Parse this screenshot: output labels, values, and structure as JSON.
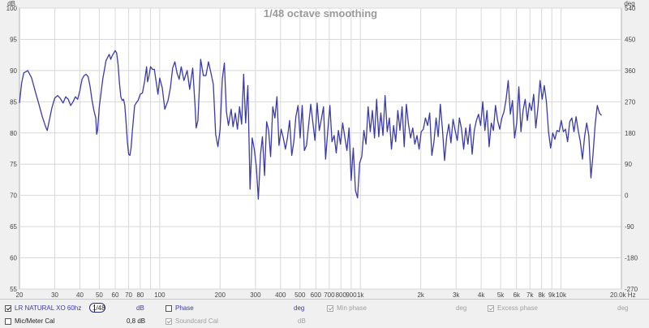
{
  "chart_data": {
    "type": "line",
    "title": "1/48 octave smoothing",
    "xscale": "log",
    "xlim": [
      20,
      20000
    ],
    "ylim": [
      55,
      100
    ],
    "y2lim": [
      -270,
      540
    ],
    "y_unit": "dB",
    "y2_unit": "deg",
    "x_tick_labels": [
      "20",
      "30",
      "40",
      "50",
      "60",
      "70",
      "80",
      "100",
      "200",
      "300",
      "400",
      "500",
      "600",
      "700",
      "800",
      "900",
      "1k",
      "2k",
      "3k",
      "4k",
      "5k",
      "6k",
      "7k",
      "8k",
      "9k",
      "10k",
      "20.0k Hz"
    ],
    "x_tick_values": [
      20,
      30,
      40,
      50,
      60,
      70,
      80,
      100,
      200,
      300,
      400,
      500,
      600,
      700,
      800,
      900,
      1000,
      2000,
      3000,
      4000,
      5000,
      6000,
      7000,
      8000,
      9000,
      10000,
      20000
    ],
    "y_tick_labels": [
      "55",
      "60",
      "65",
      "70",
      "75",
      "80",
      "85",
      "90",
      "95",
      "100"
    ],
    "y2_tick_labels": [
      "-270",
      "-180",
      "-90",
      "0",
      "90",
      "180",
      "270",
      "360",
      "450",
      "540"
    ],
    "grid": true,
    "series": [
      {
        "color": "#3a3aaa",
        "points": [
          [
            20,
            84.8
          ],
          [
            20.5,
            88
          ],
          [
            21,
            89.6
          ],
          [
            22,
            90
          ],
          [
            23,
            88.8
          ],
          [
            24,
            86.6
          ],
          [
            25,
            84.6
          ],
          [
            26,
            82.6
          ],
          [
            27,
            81
          ],
          [
            27.5,
            80.4
          ],
          [
            28,
            81.6
          ],
          [
            29,
            84
          ],
          [
            30,
            85.6
          ],
          [
            31,
            86
          ],
          [
            32,
            85.5
          ],
          [
            33,
            84.8
          ],
          [
            34,
            85.8
          ],
          [
            35,
            85.4
          ],
          [
            36,
            84.4
          ],
          [
            37,
            85
          ],
          [
            38,
            85.8
          ],
          [
            39,
            85.4
          ],
          [
            40,
            86.8
          ],
          [
            41,
            88.6
          ],
          [
            42,
            89.2
          ],
          [
            43,
            89.4
          ],
          [
            44,
            89
          ],
          [
            45,
            87.4
          ],
          [
            46,
            85.2
          ],
          [
            47,
            83.6
          ],
          [
            48,
            82.4
          ],
          [
            48.5,
            79.8
          ],
          [
            49,
            80.4
          ],
          [
            50,
            84.2
          ],
          [
            52,
            88.6
          ],
          [
            54,
            91.6
          ],
          [
            56,
            92.6
          ],
          [
            57,
            91.8
          ],
          [
            58,
            92.4
          ],
          [
            60,
            93.2
          ],
          [
            61,
            92.8
          ],
          [
            62,
            91
          ],
          [
            63,
            88
          ],
          [
            64,
            85.8
          ],
          [
            65,
            85.2
          ],
          [
            66,
            85.4
          ],
          [
            67,
            84.4
          ],
          [
            68,
            81.6
          ],
          [
            69,
            78.6
          ],
          [
            70,
            76.6
          ],
          [
            71,
            76.4
          ],
          [
            72,
            77.6
          ],
          [
            73,
            80.2
          ],
          [
            75,
            84.4
          ],
          [
            77,
            85
          ],
          [
            78,
            85.2
          ],
          [
            80,
            86.2
          ],
          [
            82,
            86.4
          ],
          [
            84,
            88.2
          ],
          [
            86,
            90.6
          ],
          [
            87,
            88.2
          ],
          [
            88,
            88.8
          ],
          [
            90,
            90.6
          ],
          [
            92,
            90.2
          ],
          [
            94,
            90.2
          ],
          [
            96,
            88.2
          ],
          [
            98,
            86.2
          ],
          [
            100,
            88.8
          ],
          [
            103,
            87.2
          ],
          [
            106,
            83.8
          ],
          [
            110,
            85.2
          ],
          [
            113,
            87.2
          ],
          [
            116,
            90.4
          ],
          [
            119,
            91.4
          ],
          [
            122,
            89.6
          ],
          [
            125,
            88.6
          ],
          [
            128,
            90.6
          ],
          [
            132,
            88.4
          ],
          [
            137,
            90
          ],
          [
            141,
            87
          ],
          [
            146,
            90.4
          ],
          [
            150,
            84.4
          ],
          [
            152,
            80.8
          ],
          [
            155,
            82
          ],
          [
            160,
            91.8
          ],
          [
            165,
            89.2
          ],
          [
            170,
            89.2
          ],
          [
            175,
            91.4
          ],
          [
            180,
            89.6
          ],
          [
            185,
            87.8
          ],
          [
            190,
            79.8
          ],
          [
            195,
            77.8
          ],
          [
            200,
            80.6
          ],
          [
            205,
            88.6
          ],
          [
            210,
            91.2
          ],
          [
            215,
            83.4
          ],
          [
            220,
            81.2
          ],
          [
            227,
            83.8
          ],
          [
            232,
            81
          ],
          [
            238,
            83.2
          ],
          [
            244,
            80.6
          ],
          [
            250,
            84.2
          ],
          [
            256,
            81.4
          ],
          [
            262,
            89.4
          ],
          [
            268,
            81.6
          ],
          [
            275,
            87.6
          ],
          [
            282,
            71
          ],
          [
            289,
            79.2
          ],
          [
            296,
            77.4
          ],
          [
            303,
            74.6
          ],
          [
            310,
            69.4
          ],
          [
            318,
            76.6
          ],
          [
            325,
            79.4
          ],
          [
            333,
            73.2
          ],
          [
            341,
            81.8
          ],
          [
            349,
            80.4
          ],
          [
            357,
            76.2
          ],
          [
            366,
            84.2
          ],
          [
            375,
            82.4
          ],
          [
            384,
            85.8
          ],
          [
            393,
            78
          ],
          [
            403,
            80.6
          ],
          [
            413,
            79.2
          ],
          [
            423,
            77.4
          ],
          [
            433,
            79.2
          ],
          [
            444,
            82
          ],
          [
            455,
            76.4
          ],
          [
            466,
            78.6
          ],
          [
            477,
            82.6
          ],
          [
            489,
            84.4
          ],
          [
            501,
            79.2
          ],
          [
            513,
            84.4
          ],
          [
            526,
            77.2
          ],
          [
            539,
            78
          ],
          [
            552,
            81.2
          ],
          [
            566,
            84.6
          ],
          [
            580,
            81.6
          ],
          [
            594,
            78.8
          ],
          [
            609,
            84.8
          ],
          [
            624,
            80.4
          ],
          [
            639,
            82.2
          ],
          [
            655,
            84.2
          ],
          [
            671,
            75.8
          ],
          [
            688,
            80.4
          ],
          [
            705,
            84.4
          ],
          [
            722,
            78.6
          ],
          [
            740,
            79.6
          ],
          [
            758,
            76.8
          ],
          [
            777,
            80.4
          ],
          [
            796,
            78.2
          ],
          [
            816,
            81.6
          ],
          [
            836,
            79.4
          ],
          [
            857,
            77.2
          ],
          [
            878,
            80.8
          ],
          [
            900,
            72.4
          ],
          [
            922,
            77.6
          ],
          [
            945,
            70.8
          ],
          [
            968,
            69.6
          ],
          [
            992,
            75.2
          ],
          [
            1016,
            76.2
          ],
          [
            1041,
            80.4
          ],
          [
            1067,
            78.2
          ],
          [
            1093,
            84.2
          ],
          [
            1120,
            80.2
          ],
          [
            1148,
            83.6
          ],
          [
            1176,
            79.2
          ],
          [
            1205,
            85.4
          ],
          [
            1235,
            79.4
          ],
          [
            1265,
            83.2
          ],
          [
            1296,
            79.6
          ],
          [
            1328,
            86
          ],
          [
            1361,
            80.2
          ],
          [
            1395,
            82.4
          ],
          [
            1429,
            77.4
          ],
          [
            1464,
            81.2
          ],
          [
            1500,
            78.6
          ],
          [
            1537,
            83.6
          ],
          [
            1575,
            80.4
          ],
          [
            1614,
            84.2
          ],
          [
            1654,
            77.8
          ],
          [
            1695,
            84.6
          ],
          [
            1737,
            81.4
          ],
          [
            1780,
            79.2
          ],
          [
            1824,
            80.8
          ],
          [
            1869,
            78.2
          ],
          [
            1915,
            79.6
          ],
          [
            1962,
            77.4
          ],
          [
            2010,
            80.2
          ],
          [
            2060,
            80.6
          ],
          [
            2111,
            82.4
          ],
          [
            2163,
            81.2
          ],
          [
            2216,
            83.2
          ],
          [
            2271,
            76.4
          ],
          [
            2327,
            78.6
          ],
          [
            2384,
            82.4
          ],
          [
            2443,
            79.4
          ],
          [
            2503,
            84.6
          ],
          [
            2565,
            80.6
          ],
          [
            2628,
            75.6
          ],
          [
            2693,
            79.4
          ],
          [
            2759,
            81.4
          ],
          [
            2827,
            78.4
          ],
          [
            2897,
            82.2
          ],
          [
            2968,
            80.4
          ],
          [
            3041,
            78.8
          ],
          [
            3116,
            82.4
          ],
          [
            3193,
            80.6
          ],
          [
            3272,
            77.4
          ],
          [
            3352,
            80.8
          ],
          [
            3435,
            78.2
          ],
          [
            3520,
            81.4
          ],
          [
            3607,
            76.6
          ],
          [
            3696,
            80.4
          ],
          [
            3787,
            82
          ],
          [
            3880,
            83
          ],
          [
            3976,
            81.2
          ],
          [
            4074,
            85
          ],
          [
            4174,
            80.4
          ],
          [
            4277,
            83.6
          ],
          [
            4383,
            77.8
          ],
          [
            4491,
            81.6
          ],
          [
            4602,
            80.4
          ],
          [
            4715,
            84.4
          ],
          [
            4831,
            82
          ],
          [
            4950,
            80.6
          ],
          [
            5072,
            82.4
          ],
          [
            5197,
            83.4
          ],
          [
            5325,
            85.4
          ],
          [
            5456,
            88.4
          ],
          [
            5591,
            83
          ],
          [
            5729,
            85.2
          ],
          [
            5870,
            79.2
          ],
          [
            6015,
            81.6
          ],
          [
            6163,
            87.4
          ],
          [
            6315,
            80.2
          ],
          [
            6471,
            83.6
          ],
          [
            6630,
            85.4
          ],
          [
            6793,
            82
          ],
          [
            6961,
            84.8
          ],
          [
            7132,
            83.6
          ],
          [
            7308,
            86.2
          ],
          [
            7488,
            80.8
          ],
          [
            7672,
            84
          ],
          [
            7861,
            88.4
          ],
          [
            8055,
            85.4
          ],
          [
            8253,
            87.6
          ],
          [
            8456,
            85
          ],
          [
            8664,
            80.2
          ],
          [
            8878,
            77.6
          ],
          [
            9096,
            80
          ],
          [
            9320,
            79
          ],
          [
            9550,
            80.4
          ],
          [
            9785,
            80.2
          ],
          [
            10026,
            82
          ],
          [
            10273,
            80.2
          ],
          [
            10526,
            80.6
          ],
          [
            10785,
            78.6
          ],
          [
            11051,
            81.8
          ],
          [
            11323,
            82.4
          ],
          [
            11602,
            80.2
          ],
          [
            11888,
            82.6
          ],
          [
            12181,
            80.4
          ],
          [
            12481,
            78.6
          ],
          [
            12788,
            75.8
          ],
          [
            13103,
            79.4
          ],
          [
            13426,
            81.6
          ],
          [
            13757,
            79.6
          ],
          [
            14096,
            72.8
          ],
          [
            14443,
            76.6
          ],
          [
            14799,
            81.4
          ],
          [
            15164,
            84.4
          ],
          [
            15537,
            83.2
          ],
          [
            15920,
            82.8
          ]
        ]
      }
    ]
  },
  "controls": {
    "row1": {
      "measurement_label": "LR NATURAL XO 60hz",
      "smoothing_value": "1/48",
      "unit_db": "dB",
      "phase_label": "Phase",
      "phase_unit": "deg",
      "min_phase_label": "Min phase",
      "min_phase_unit": "deg",
      "excess_phase_label": "Excess phase",
      "excess_phase_unit": "deg"
    },
    "row2": {
      "mic_cal_label": "Mic/Meter Cal",
      "offset_value": "0,8 dB",
      "soundcard_cal_label": "Soundcard Cal",
      "soundcard_unit": "dB"
    }
  }
}
